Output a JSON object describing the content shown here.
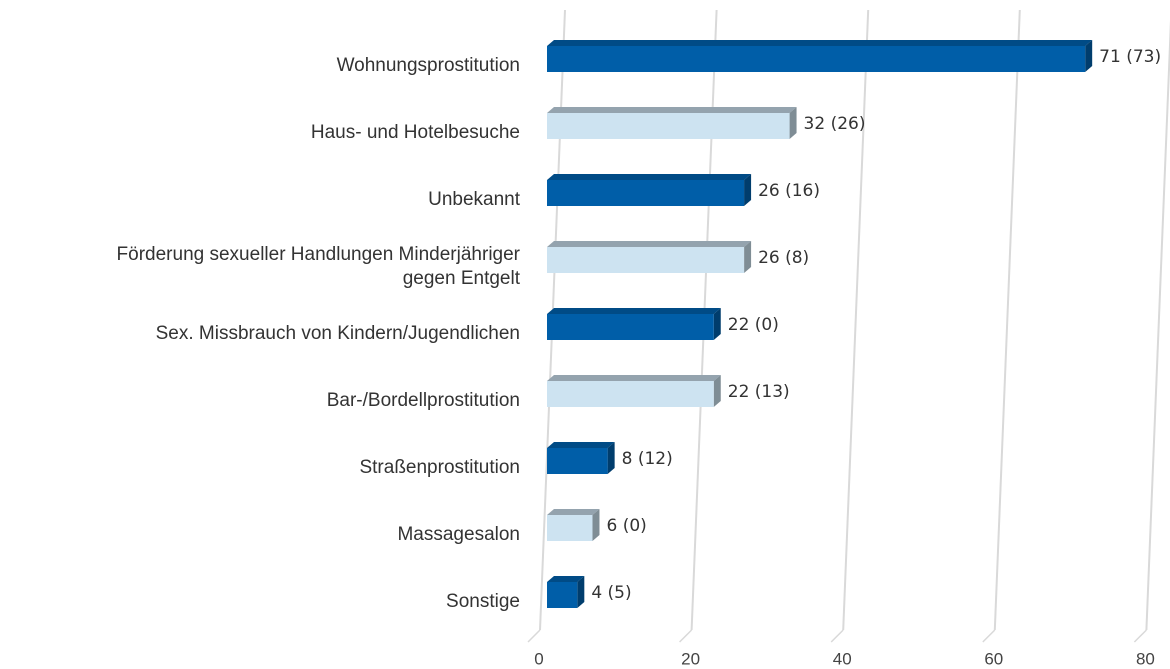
{
  "chart_data": {
    "type": "bar3d",
    "orientation": "horizontal",
    "categories": [
      "Wohnungsprostitution",
      "Haus- und Hotelbesuche",
      "Unbekannt",
      "Förderung sexueller Handlungen Minderjähriger\ngegen Entgelt",
      "Sex. Missbrauch von Kindern/Jugendlichen",
      "Bar-/Bordellprostitution",
      "Straßenprostitution",
      "Massagesalon",
      "Sonstige"
    ],
    "values": [
      71,
      32,
      26,
      26,
      22,
      22,
      8,
      6,
      4
    ],
    "value_labels": [
      "71 (73)",
      "32 (26)",
      "26 (16)",
      "26 (8)",
      "22 (0)",
      "22 (13)",
      "8 (12)",
      "6 (0)",
      "4 (5)"
    ],
    "colors": [
      "#005ea8",
      "#cde3f1",
      "#005ea8",
      "#cde3f1",
      "#005ea8",
      "#cde3f1",
      "#005ea8",
      "#cde3f1",
      "#005ea8"
    ],
    "xlim": [
      0,
      80
    ],
    "xticks": [
      0,
      20,
      40,
      60,
      80
    ],
    "grid": true
  }
}
